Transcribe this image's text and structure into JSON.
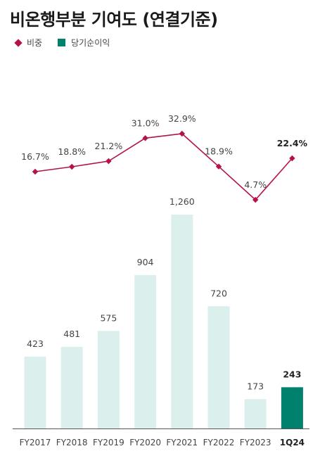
{
  "title": "비온행부분 기여도 (연결기준)",
  "legend": [
    {
      "label": "비중",
      "color": "#b5124a",
      "marker": "diamond"
    },
    {
      "label": "당기순이익",
      "color": "#00816d",
      "marker": "square"
    }
  ],
  "colors": {
    "bar": "#dbf0ed",
    "bar_highlight": "#00816d",
    "line": "#b5124a",
    "axis": "#555555"
  },
  "chart_data": {
    "type": "bar+line",
    "categories": [
      "FY2017",
      "FY2018",
      "FY2019",
      "FY2020",
      "FY2021",
      "FY2022",
      "FY2023",
      "1Q24"
    ],
    "highlight_index": 7,
    "series": [
      {
        "name": "당기순이익",
        "type": "bar",
        "values": [
          423,
          481,
          575,
          904,
          1260,
          720,
          173,
          243
        ],
        "labels": [
          "423",
          "481",
          "575",
          "904",
          "1,260",
          "720",
          "173",
          "243"
        ]
      },
      {
        "name": "비중",
        "type": "line",
        "values": [
          16.7,
          18.8,
          21.2,
          31.0,
          32.9,
          18.9,
          4.7,
          22.4
        ],
        "labels": [
          "16.7%",
          "18.8%",
          "21.2%",
          "31.0%",
          "32.9%",
          "18.9%",
          "4.7%",
          "22.4%"
        ]
      }
    ],
    "bar_ylim": [
      0,
      1300
    ],
    "line_ylim": [
      4.7,
      32.9
    ],
    "grid": false,
    "legend_position": "top-left"
  }
}
